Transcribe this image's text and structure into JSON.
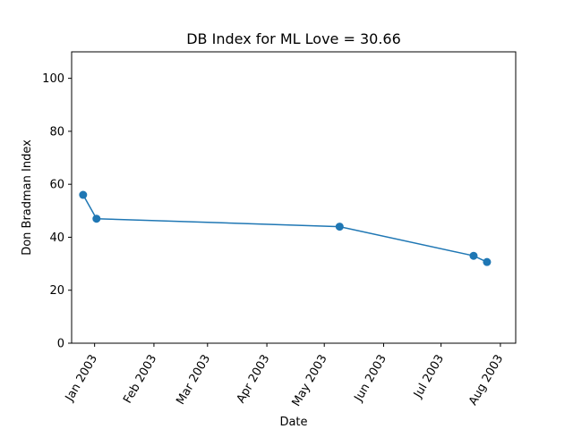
{
  "chart_data": {
    "type": "line",
    "title": "DB Index for ML Love = 30.66",
    "xlabel": "Date",
    "ylabel": "Don Bradman Index",
    "ylim": [
      0,
      110
    ],
    "yticks": [
      0,
      20,
      40,
      60,
      80,
      100
    ],
    "xlim": [
      "2002-12-20",
      "2003-08-09"
    ],
    "xticks": [
      {
        "date": "2003-01-01",
        "label": "Jan 2003"
      },
      {
        "date": "2003-02-01",
        "label": "Feb 2003"
      },
      {
        "date": "2003-03-01",
        "label": "Mar 2003"
      },
      {
        "date": "2003-04-01",
        "label": "Apr 2003"
      },
      {
        "date": "2003-05-01",
        "label": "May 2003"
      },
      {
        "date": "2003-06-01",
        "label": "Jun 2003"
      },
      {
        "date": "2003-07-01",
        "label": "Jul 2003"
      },
      {
        "date": "2003-08-01",
        "label": "Aug 2003"
      }
    ],
    "series": [
      {
        "color": "#1f77b4",
        "x": [
          "2002-12-26",
          "2003-01-02",
          "2003-05-09",
          "2003-07-18",
          "2003-07-25"
        ],
        "y": [
          56,
          47,
          44,
          33,
          30.66
        ]
      }
    ],
    "grid": false,
    "marker": "circle"
  }
}
